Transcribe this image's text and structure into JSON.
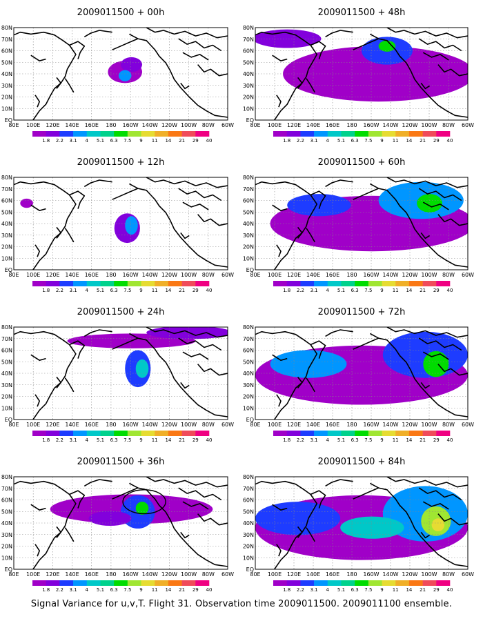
{
  "colorbar": {
    "labels": [
      "1.8",
      "2.2",
      "3.1",
      "4",
      "5.1",
      "6.3",
      "7.5",
      "9",
      "11",
      "14",
      "21",
      "29",
      "40"
    ],
    "colors": [
      "#a000c8",
      "#8200dc",
      "#1e3cff",
      "#0096ff",
      "#00c8c8",
      "#00d28c",
      "#00dc00",
      "#a0e632",
      "#e6dc32",
      "#f0af28",
      "#fa7814",
      "#f04b5a",
      "#f00082"
    ]
  },
  "axes": {
    "lon_labels": [
      "80E",
      "100E",
      "120E",
      "140E",
      "160E",
      "180",
      "160W",
      "140W",
      "120W",
      "100W",
      "80W",
      "60W"
    ],
    "lat_labels": [
      "80N",
      "70N",
      "60N",
      "50N",
      "40N",
      "30N",
      "20N",
      "10N",
      "EQ"
    ]
  },
  "panels": [
    {
      "title": "2009011500 + 00h",
      "level": 0
    },
    {
      "title": "2009011500 + 12h",
      "level": 1
    },
    {
      "title": "2009011500 + 24h",
      "level": 2
    },
    {
      "title": "2009011500 + 36h",
      "level": 3
    },
    {
      "title": "2009011500 + 48h",
      "level": 4
    },
    {
      "title": "2009011500 + 60h",
      "level": 5
    },
    {
      "title": "2009011500 + 72h",
      "level": 6
    },
    {
      "title": "2009011500 + 84h",
      "level": 7
    }
  ],
  "caption": "Signal Variance for u,v,T. Flight 31. Observation time 2009011500. 2009011100 ensemble."
}
